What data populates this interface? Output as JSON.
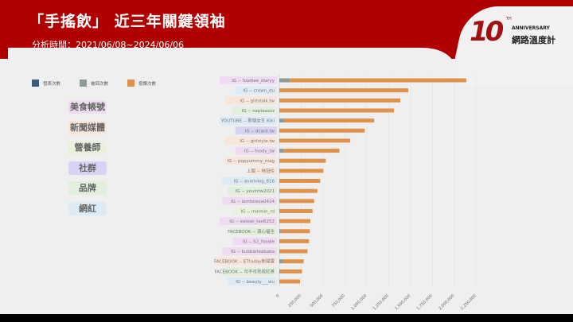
{
  "header": {
    "title": "「手搖飲」 近三年關鍵領袖",
    "subtitle": "分析時間：2021/06/08~2024/06/06"
  },
  "logo": {
    "ten": "10",
    "th": "TH",
    "anniversary": "ANNIVERSARY",
    "brand": "網路溫度計"
  },
  "categories": [
    {
      "label": "美食帳號",
      "color": "#f0dcf2"
    },
    {
      "label": "新聞媒體",
      "color": "#f9e6da"
    },
    {
      "label": "營養師",
      "color": "#e9f0dc"
    },
    {
      "label": "社群",
      "color": "#d6d3f3"
    },
    {
      "label": "品牌",
      "color": "#e1efdc"
    },
    {
      "label": "網紅",
      "color": "#dcebf6"
    }
  ],
  "chart_data": {
    "type": "bar",
    "orientation": "horizontal",
    "stacked": true,
    "legend": [
      "發表次數",
      "被回次數",
      "按讚次數"
    ],
    "legend_position": "top-left",
    "series_colors": [
      "#3d5a78",
      "#8c9a98",
      "#e0924a"
    ],
    "categories": [
      "IG -- foodiee_diaryy",
      "IG -- crown_du",
      "IG -- girlstalk.tw",
      "IG -- napteazzz",
      "YOUTUBE -- 那個女生 Kiki",
      "IG -- dcard.tw",
      "IG -- girlstyle.tw",
      "IG -- foody_tw",
      "IG -- popyummy_mag",
      "上報 -- 林冠伶",
      "IG -- anielvlog_816",
      "IG -- youintw2021",
      "IG -- iamteresa0424",
      "IG -- minmin_rd",
      "IG -- eateat_tao6252",
      "FACEBOOK -- 滿心福全",
      "IG -- 52_foodie",
      "IG -- bubbleteababa",
      "FACEBOOK -- ETtoday新聞雲",
      "FACEBOOK -- 可不可熟成紅茶",
      "IG -- beauty___wu"
    ],
    "category_group": [
      0,
      5,
      1,
      4,
      5,
      3,
      1,
      0,
      1,
      1,
      5,
      4,
      0,
      2,
      0,
      4,
      0,
      0,
      1,
      4,
      5
    ],
    "series": [
      {
        "name": "發表次數",
        "values": [
          2000,
          300,
          500,
          400,
          1500,
          300,
          400,
          1200,
          300,
          200,
          300,
          300,
          400,
          300,
          300,
          1000,
          300,
          300,
          2000,
          1500,
          300
        ]
      },
      {
        "name": "被回次數",
        "values": [
          118000,
          3000,
          3000,
          8000,
          60000,
          3000,
          3000,
          50000,
          3000,
          3000,
          3000,
          3000,
          8000,
          3000,
          3000,
          15000,
          3000,
          3000,
          40000,
          12000,
          3000
        ]
      },
      {
        "name": "按讚次數",
        "values": [
          2015000,
          1470000,
          1379000,
          1301000,
          1022000,
          973000,
          806000,
          635000,
          527000,
          500000,
          464000,
          430000,
          389000,
          376000,
          352000,
          333000,
          336000,
          318000,
          236000,
          245000,
          233000
        ]
      }
    ],
    "xlim": [
      0,
      2250000
    ],
    "xticks": [
      "0",
      "250,000",
      "500,000",
      "750,000",
      "1,000,000",
      "1,250,000",
      "1,500,000",
      "1,750,000",
      "2,000,000",
      "2,250,000"
    ],
    "grid": true
  }
}
